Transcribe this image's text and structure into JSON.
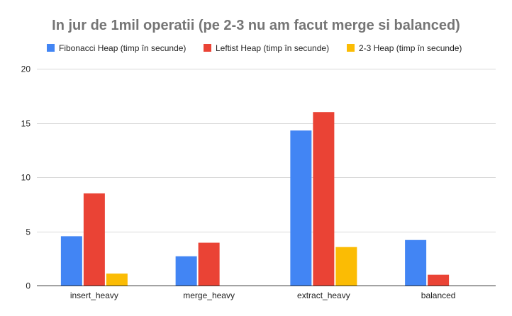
{
  "chart_data": {
    "type": "bar",
    "title": "In jur de 1mil operatii (pe 2-3 nu am facut merge si balanced)",
    "categories": [
      "insert_heavy",
      "merge_heavy",
      "extract_heavy",
      "balanced"
    ],
    "series": [
      {
        "name": "Fibonacci Heap (timp în secunde)",
        "color": "#4285F4",
        "values": [
          4.55,
          2.7,
          14.3,
          4.2
        ]
      },
      {
        "name": "Leftist Heap (timp în secunde)",
        "color": "#EA4335",
        "values": [
          8.5,
          3.95,
          16.0,
          1.0
        ]
      },
      {
        "name": "2-3 Heap (timp în secunde)",
        "color": "#FBBC04",
        "values": [
          1.1,
          null,
          3.55,
          null
        ]
      }
    ],
    "ylim": [
      0,
      20
    ],
    "yticks": [
      "0",
      "5",
      "10",
      "15",
      "20"
    ],
    "xlabel": "",
    "ylabel": "",
    "grid": true,
    "legend_position": "top"
  }
}
